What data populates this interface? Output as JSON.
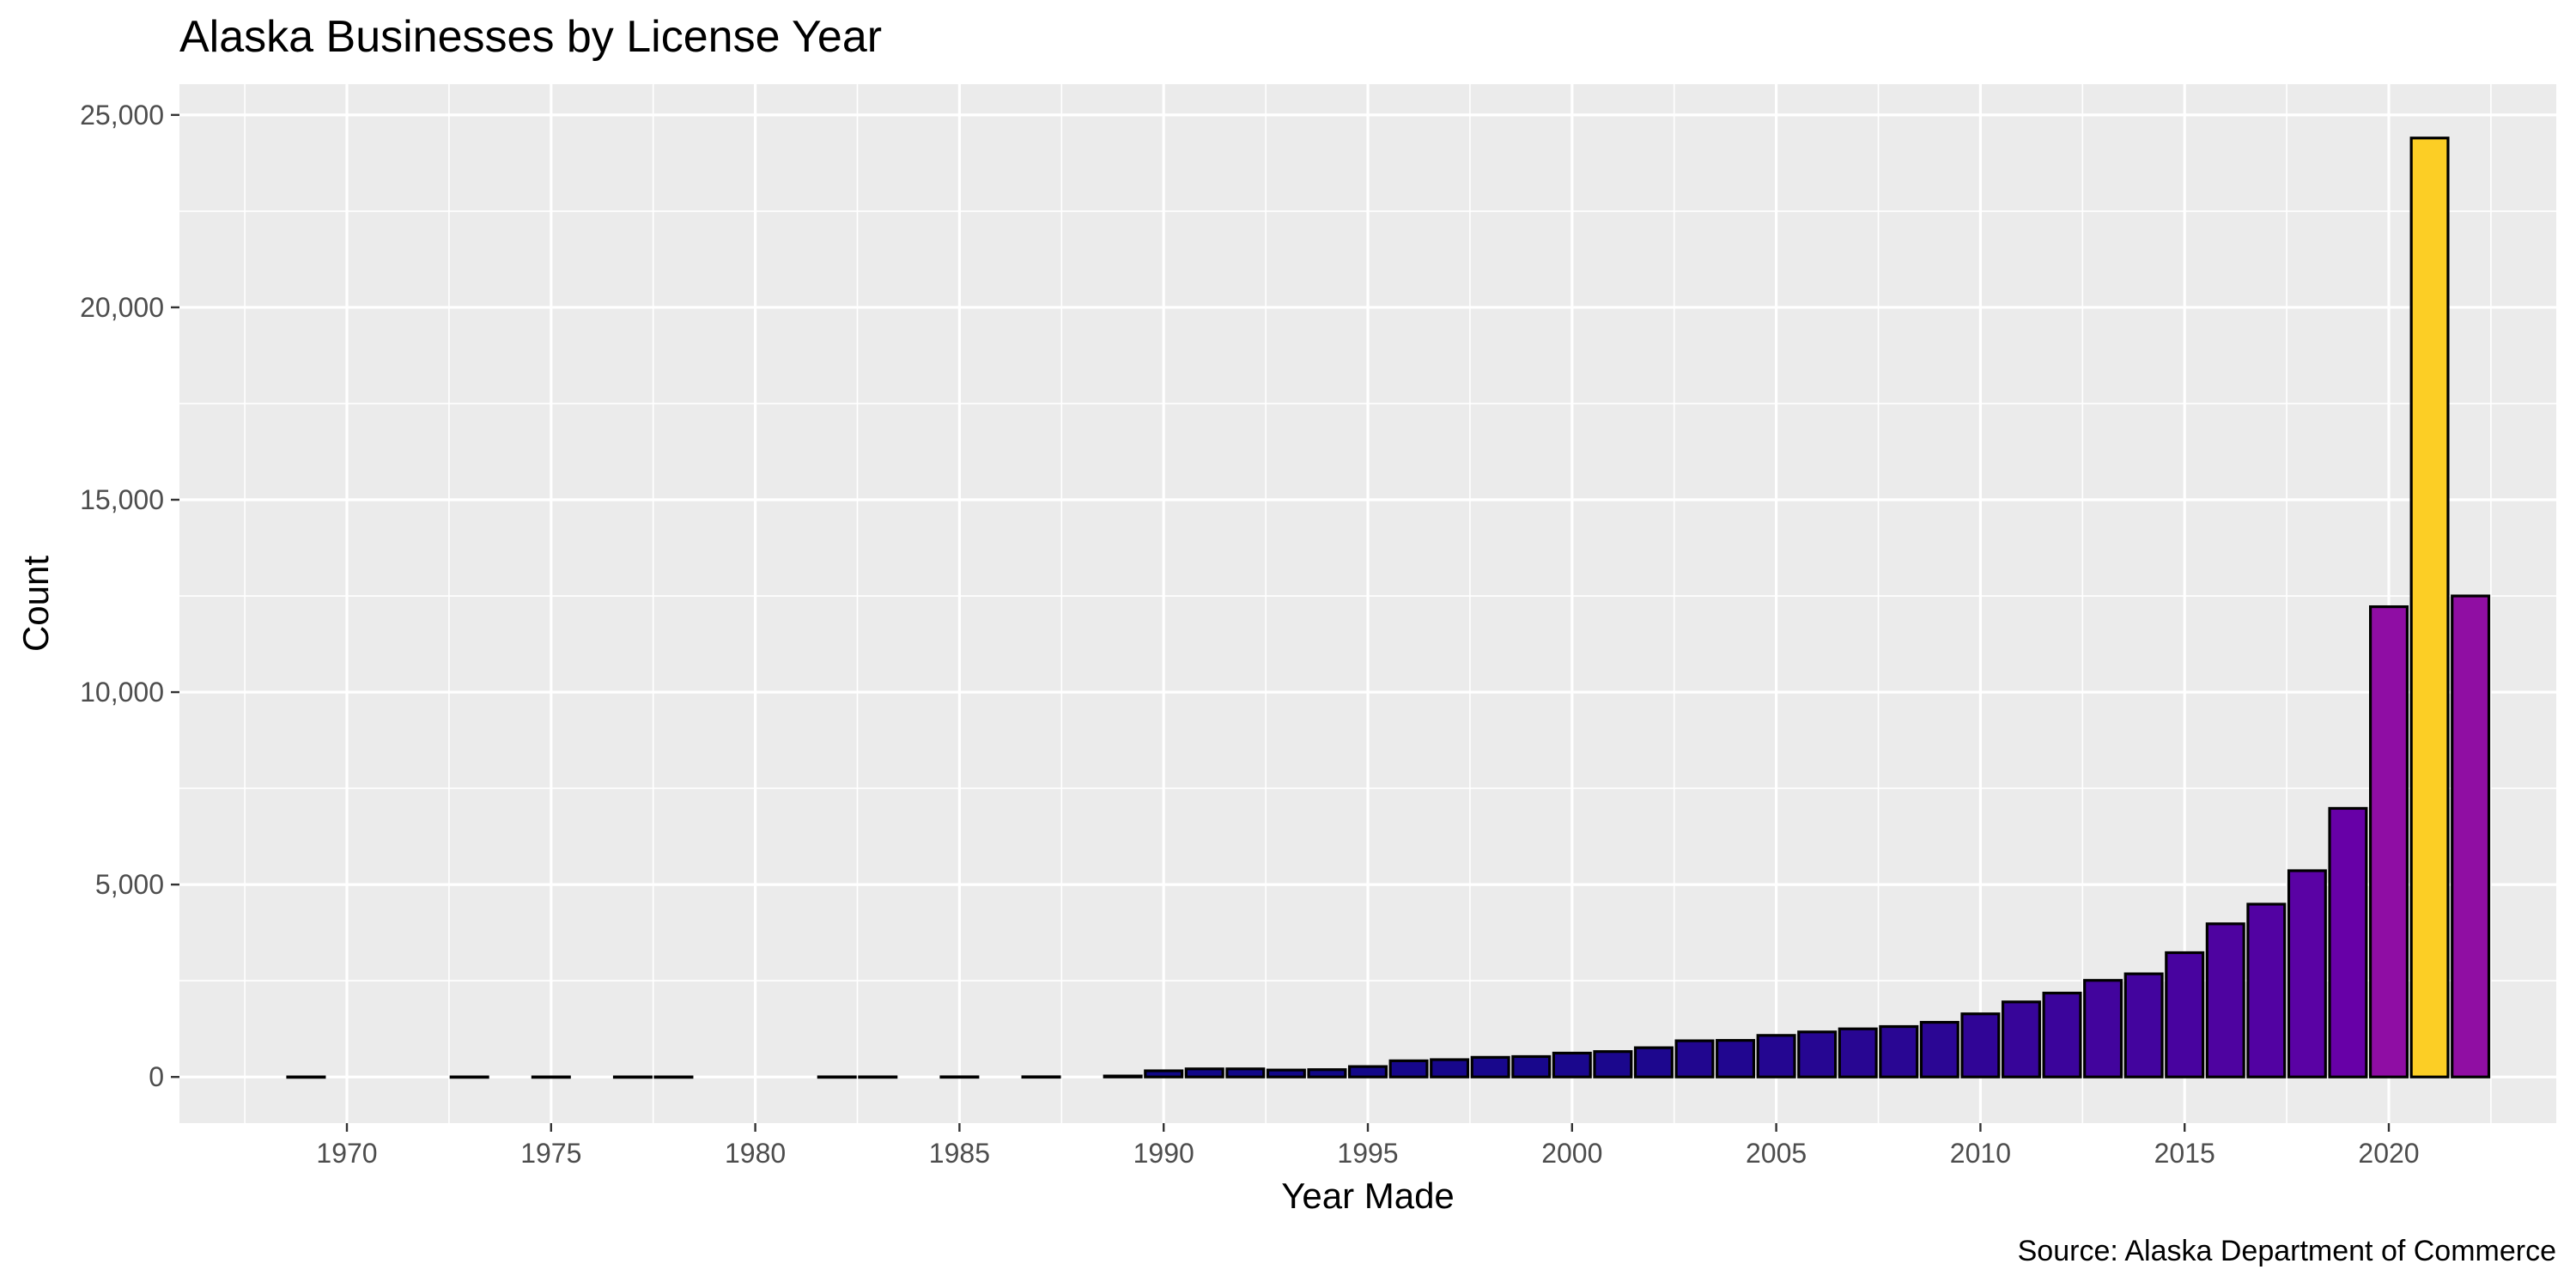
{
  "chart_data": {
    "type": "bar",
    "title": "Alaska Businesses by License Year",
    "xlabel": "Year Made",
    "ylabel": "Count",
    "caption": "Source: Alaska Department of Commerce",
    "xlim": [
      1965.9,
      2024.1
    ],
    "ylim": [
      -1200,
      25800
    ],
    "x_ticks": [
      1970,
      1975,
      1980,
      1985,
      1990,
      1995,
      2000,
      2005,
      2010,
      2015,
      2020
    ],
    "x_tick_labels": [
      "1970",
      "1975",
      "1980",
      "1985",
      "1990",
      "1995",
      "2000",
      "2005",
      "2010",
      "2015",
      "2020"
    ],
    "y_ticks": [
      0,
      5000,
      10000,
      15000,
      20000,
      25000
    ],
    "y_tick_labels": [
      "0",
      "5,000",
      "10,000",
      "15,000",
      "20,000",
      "25,000"
    ],
    "grid": true,
    "legend": "none",
    "bar_width_years": 0.9,
    "fill_scale": "plasma (dark purple for low counts to yellow for the maximum)",
    "x": [
      1969,
      1973,
      1975,
      1977,
      1978,
      1982,
      1983,
      1985,
      1987,
      1989,
      1990,
      1991,
      1992,
      1993,
      1994,
      1995,
      1996,
      1997,
      1998,
      1999,
      2000,
      2001,
      2002,
      2003,
      2004,
      2005,
      2006,
      2007,
      2008,
      2009,
      2010,
      2011,
      2012,
      2013,
      2014,
      2015,
      2016,
      2017,
      2018,
      2019,
      2020,
      2021,
      2022
    ],
    "values": [
      2,
      2,
      2,
      2,
      2,
      3,
      3,
      4,
      5,
      25,
      160,
      210,
      210,
      180,
      190,
      270,
      420,
      450,
      510,
      530,
      620,
      660,
      760,
      940,
      950,
      1080,
      1170,
      1250,
      1310,
      1420,
      1640,
      1950,
      2180,
      2510,
      2680,
      3230,
      3980,
      4490,
      5360,
      6980,
      12220,
      24400,
      12500
    ]
  }
}
